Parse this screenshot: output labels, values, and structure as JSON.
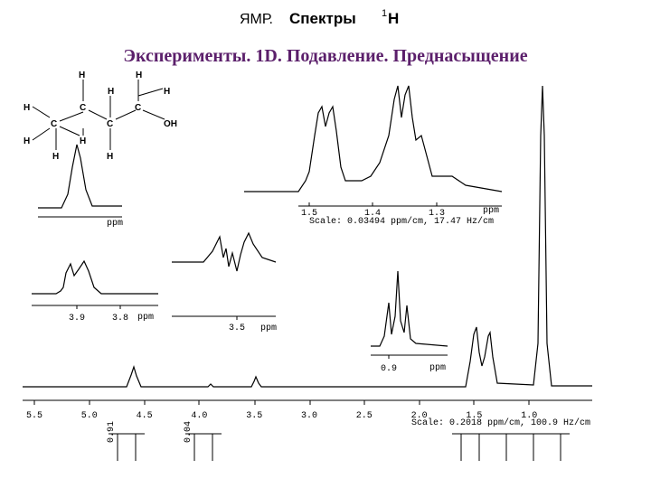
{
  "header": {
    "title_a": "ЯМР.",
    "title_b": "Спектры",
    "title_sup": "1",
    "title_c": "H",
    "subtitle": "Эксперименты. 1D. Подавление. Преднасыщение"
  },
  "molecule": {
    "atoms": [
      "H",
      "H",
      "H",
      "H",
      "H",
      "C",
      "C",
      "C",
      "C",
      "OH",
      "H",
      "H",
      "H",
      "H"
    ]
  },
  "main": {
    "ticks": [
      "5.5",
      "5.0",
      "4.5",
      "4.0",
      "3.5",
      "3.0",
      "2.5",
      "2.0",
      "1.5",
      "1.0"
    ],
    "scale": "Scale: 0.2018 ppm/cm, 100.9 Hz/cm",
    "integrals": [
      "0.91",
      "0.04"
    ]
  },
  "inset_top": {
    "ticks": [
      "1.5",
      "1.4",
      "1.3"
    ],
    "unit": "ppm",
    "scale": "Scale: 0.03494 ppm/cm, 17.47 Hz/cm"
  },
  "inset_left": {
    "unit": "ppm"
  },
  "inset_39": {
    "ticks": [
      "3.9",
      "3.8"
    ],
    "unit": "ppm"
  },
  "inset_35": {
    "ticks": [
      "3.5"
    ],
    "unit": "ppm"
  },
  "inset_09": {
    "ticks": [
      "0.9"
    ],
    "unit": "ppm"
  }
}
